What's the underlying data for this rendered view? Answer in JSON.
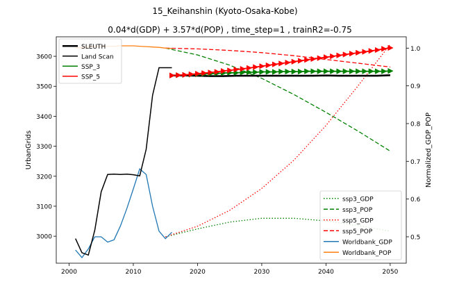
{
  "chart_data": {
    "type": "line",
    "title_line1": "15_Keihanshin (Kyoto-Osaka-Kobe)",
    "title_line2": "0.04*d(GDP) + 3.57*d(POP) , time_step=1 , trainR2=-0.75",
    "xlabel": "",
    "ylabel_left": "UrbanGrids",
    "ylabel_right": "Normalized_GDP_POP",
    "xlim": [
      1998,
      2052.5
    ],
    "ylim_left": [
      2910,
      3665
    ],
    "ylim_right": [
      0.43,
      1.03
    ],
    "x_ticks": [
      2000,
      2010,
      2020,
      2030,
      2040,
      2050
    ],
    "y_ticks_left": [
      3000,
      3100,
      3200,
      3300,
      3400,
      3500,
      3600
    ],
    "y_ticks_right": [
      0.5,
      0.6,
      0.7,
      0.8,
      0.9,
      1.0
    ],
    "grid": false,
    "legend_left": {
      "placement": "top-left",
      "entries": [
        {
          "label": "SLEUTH",
          "color": "#000000",
          "style": "thick"
        },
        {
          "label": "Land Scan",
          "color": "#000000",
          "style": "solid"
        },
        {
          "label": "SSP_3",
          "color": "#008000",
          "style": "solid"
        },
        {
          "label": "SSP_5",
          "color": "#ff0000",
          "style": "solid"
        }
      ]
    },
    "legend_right": {
      "placement": "bottom-right",
      "entries": [
        {
          "label": "ssp3_GDP",
          "color": "#008000",
          "style": "dotted"
        },
        {
          "label": "ssp3_POP",
          "color": "#008000",
          "style": "dashed"
        },
        {
          "label": "ssp5_GDP",
          "color": "#ff0000",
          "style": "dotted"
        },
        {
          "label": "ssp5_POP",
          "color": "#ff0000",
          "style": "dashed"
        },
        {
          "label": "Worldbank_GDP",
          "color": "#1f77b4",
          "style": "solid"
        },
        {
          "label": "Worldbank_POP",
          "color": "#ff7f0e",
          "style": "solid"
        }
      ]
    },
    "series_left": [
      {
        "name": "Land Scan",
        "color": "#000000",
        "width": 1.5,
        "x": [
          2001,
          2002,
          2003,
          2004,
          2005,
          2006,
          2007,
          2008,
          2009,
          2010,
          2011,
          2012,
          2013,
          2014,
          2015,
          2016
        ],
        "y": [
          2992,
          2945,
          2937,
          3020,
          3148,
          3206,
          3207,
          3206,
          3207,
          3205,
          3201,
          3290,
          3470,
          3562,
          3562,
          3562
        ]
      },
      {
        "name": "SLEUTH",
        "color": "#000000",
        "width": 2.6,
        "x": [
          2016,
          2018,
          2020,
          2022,
          2024,
          2026,
          2028,
          2030,
          2032,
          2034,
          2036,
          2038,
          2040,
          2042,
          2044,
          2046,
          2048,
          2050
        ],
        "y": [
          3536,
          3536,
          3535,
          3534,
          3534,
          3535,
          3535,
          3535,
          3535,
          3535,
          3535,
          3535,
          3536,
          3535,
          3535,
          3535,
          3535,
          3537
        ]
      },
      {
        "name": "SSP_3",
        "color": "#008000",
        "width": 1.8,
        "markers": true,
        "x": [
          2016,
          2017,
          2018,
          2019,
          2020,
          2021,
          2022,
          2023,
          2024,
          2025,
          2026,
          2027,
          2028,
          2029,
          2030,
          2031,
          2032,
          2033,
          2034,
          2035,
          2036,
          2037,
          2038,
          2039,
          2040,
          2041,
          2042,
          2043,
          2044,
          2045,
          2046,
          2047,
          2048,
          2049,
          2050
        ],
        "y": [
          3536,
          3537,
          3538,
          3539,
          3540,
          3541,
          3542,
          3543,
          3544,
          3545,
          3545,
          3546,
          3547,
          3547,
          3548,
          3548,
          3548,
          3549,
          3549,
          3549,
          3549,
          3550,
          3550,
          3550,
          3550,
          3550,
          3550,
          3550,
          3550,
          3550,
          3550,
          3550,
          3550,
          3550,
          3551
        ]
      },
      {
        "name": "SSP_5",
        "color": "#ff0000",
        "width": 1.8,
        "markers": true,
        "x": [
          2016,
          2017,
          2018,
          2019,
          2020,
          2021,
          2022,
          2023,
          2024,
          2025,
          2026,
          2027,
          2028,
          2029,
          2030,
          2031,
          2032,
          2033,
          2034,
          2035,
          2036,
          2037,
          2038,
          2039,
          2040,
          2041,
          2042,
          2043,
          2044,
          2045,
          2046,
          2047,
          2048,
          2049,
          2050
        ],
        "y": [
          3536,
          3537,
          3538,
          3540,
          3542,
          3544,
          3546,
          3548,
          3551,
          3553,
          3556,
          3558,
          3561,
          3564,
          3567,
          3570,
          3573,
          3576,
          3579,
          3582,
          3585,
          3588,
          3591,
          3594,
          3597,
          3600,
          3603,
          3606,
          3609,
          3612,
          3615,
          3618,
          3621,
          3625,
          3628
        ]
      }
    ],
    "series_right": [
      {
        "name": "ssp3_GDP",
        "color": "#008000",
        "style": "dotted",
        "x": [
          2015,
          2020,
          2025,
          2030,
          2035,
          2040,
          2045,
          2050
        ],
        "y": [
          0.5,
          0.521,
          0.539,
          0.549,
          0.549,
          0.542,
          0.53,
          0.515
        ]
      },
      {
        "name": "ssp3_POP",
        "color": "#008000",
        "style": "dashed",
        "x": [
          2015,
          2020,
          2025,
          2030,
          2035,
          2040,
          2045,
          2050
        ],
        "y": [
          1.0,
          0.982,
          0.955,
          0.92,
          0.877,
          0.83,
          0.78,
          0.727
        ]
      },
      {
        "name": "ssp5_GDP",
        "color": "#ff0000",
        "style": "dotted",
        "x": [
          2015,
          2020,
          2025,
          2030,
          2035,
          2040,
          2045,
          2050
        ],
        "y": [
          0.5,
          0.528,
          0.57,
          0.628,
          0.703,
          0.795,
          0.9,
          1.01
        ]
      },
      {
        "name": "ssp5_POP",
        "color": "#ff0000",
        "style": "dashed",
        "x": [
          2015,
          2020,
          2025,
          2030,
          2035,
          2040,
          2045,
          2050
        ],
        "y": [
          1.0,
          0.998,
          0.994,
          0.988,
          0.98,
          0.97,
          0.96,
          0.95
        ]
      },
      {
        "name": "Worldbank_GDP",
        "color": "#1f77b4",
        "style": "solid",
        "x": [
          2001,
          2002,
          2003,
          2004,
          2005,
          2006,
          2007,
          2008,
          2009,
          2010,
          2011,
          2012,
          2013,
          2014,
          2015,
          2016
        ],
        "y": [
          0.465,
          0.445,
          0.468,
          0.5,
          0.5,
          0.486,
          0.492,
          0.529,
          0.575,
          0.627,
          0.68,
          0.665,
          0.581,
          0.515,
          0.495,
          0.512
        ]
      },
      {
        "name": "Worldbank_POP",
        "color": "#ff7f0e",
        "style": "solid",
        "x": [
          2001,
          2002,
          2003,
          2004,
          2005,
          2006,
          2007,
          2008,
          2009,
          2010,
          2011,
          2012,
          2013,
          2014,
          2015,
          2016
        ],
        "y": [
          1.0,
          1.002,
          1.003,
          1.004,
          1.005,
          1.005,
          1.005,
          1.006,
          1.006,
          1.006,
          1.005,
          1.004,
          1.003,
          1.002,
          1.0,
          0.999
        ]
      }
    ]
  }
}
